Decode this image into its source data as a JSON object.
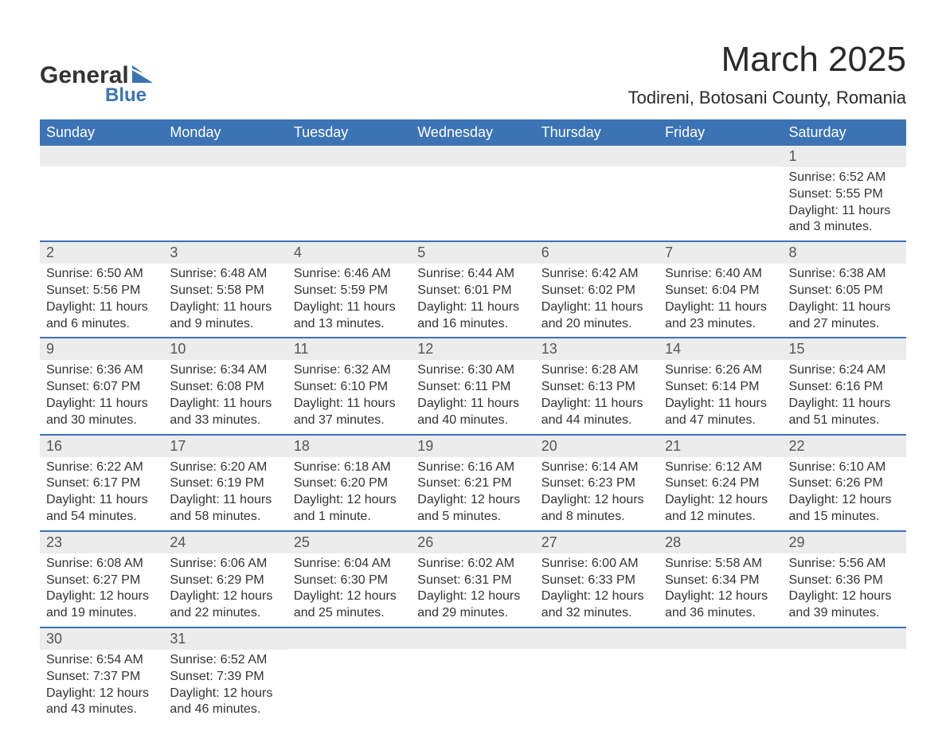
{
  "logo": {
    "word1": "General",
    "word2": "Blue",
    "icon_color": "#3b73b5"
  },
  "title": "March 2025",
  "subtitle": "Todireni, Botosani County, Romania",
  "header_bg": "#3b73b5",
  "header_fg": "#ffffff",
  "daynum_bg": "#ececec",
  "row_border": "#3b73b5",
  "weekdays": [
    "Sunday",
    "Monday",
    "Tuesday",
    "Wednesday",
    "Thursday",
    "Friday",
    "Saturday"
  ],
  "weeks": [
    [
      {
        "n": "",
        "lines": ""
      },
      {
        "n": "",
        "lines": ""
      },
      {
        "n": "",
        "lines": ""
      },
      {
        "n": "",
        "lines": ""
      },
      {
        "n": "",
        "lines": ""
      },
      {
        "n": "",
        "lines": ""
      },
      {
        "n": "1",
        "lines": "Sunrise: 6:52 AM\nSunset: 5:55 PM\nDaylight: 11 hours and 3 minutes."
      }
    ],
    [
      {
        "n": "2",
        "lines": "Sunrise: 6:50 AM\nSunset: 5:56 PM\nDaylight: 11 hours and 6 minutes."
      },
      {
        "n": "3",
        "lines": "Sunrise: 6:48 AM\nSunset: 5:58 PM\nDaylight: 11 hours and 9 minutes."
      },
      {
        "n": "4",
        "lines": "Sunrise: 6:46 AM\nSunset: 5:59 PM\nDaylight: 11 hours and 13 minutes."
      },
      {
        "n": "5",
        "lines": "Sunrise: 6:44 AM\nSunset: 6:01 PM\nDaylight: 11 hours and 16 minutes."
      },
      {
        "n": "6",
        "lines": "Sunrise: 6:42 AM\nSunset: 6:02 PM\nDaylight: 11 hours and 20 minutes."
      },
      {
        "n": "7",
        "lines": "Sunrise: 6:40 AM\nSunset: 6:04 PM\nDaylight: 11 hours and 23 minutes."
      },
      {
        "n": "8",
        "lines": "Sunrise: 6:38 AM\nSunset: 6:05 PM\nDaylight: 11 hours and 27 minutes."
      }
    ],
    [
      {
        "n": "9",
        "lines": "Sunrise: 6:36 AM\nSunset: 6:07 PM\nDaylight: 11 hours and 30 minutes."
      },
      {
        "n": "10",
        "lines": "Sunrise: 6:34 AM\nSunset: 6:08 PM\nDaylight: 11 hours and 33 minutes."
      },
      {
        "n": "11",
        "lines": "Sunrise: 6:32 AM\nSunset: 6:10 PM\nDaylight: 11 hours and 37 minutes."
      },
      {
        "n": "12",
        "lines": "Sunrise: 6:30 AM\nSunset: 6:11 PM\nDaylight: 11 hours and 40 minutes."
      },
      {
        "n": "13",
        "lines": "Sunrise: 6:28 AM\nSunset: 6:13 PM\nDaylight: 11 hours and 44 minutes."
      },
      {
        "n": "14",
        "lines": "Sunrise: 6:26 AM\nSunset: 6:14 PM\nDaylight: 11 hours and 47 minutes."
      },
      {
        "n": "15",
        "lines": "Sunrise: 6:24 AM\nSunset: 6:16 PM\nDaylight: 11 hours and 51 minutes."
      }
    ],
    [
      {
        "n": "16",
        "lines": "Sunrise: 6:22 AM\nSunset: 6:17 PM\nDaylight: 11 hours and 54 minutes."
      },
      {
        "n": "17",
        "lines": "Sunrise: 6:20 AM\nSunset: 6:19 PM\nDaylight: 11 hours and 58 minutes."
      },
      {
        "n": "18",
        "lines": "Sunrise: 6:18 AM\nSunset: 6:20 PM\nDaylight: 12 hours and 1 minute."
      },
      {
        "n": "19",
        "lines": "Sunrise: 6:16 AM\nSunset: 6:21 PM\nDaylight: 12 hours and 5 minutes."
      },
      {
        "n": "20",
        "lines": "Sunrise: 6:14 AM\nSunset: 6:23 PM\nDaylight: 12 hours and 8 minutes."
      },
      {
        "n": "21",
        "lines": "Sunrise: 6:12 AM\nSunset: 6:24 PM\nDaylight: 12 hours and 12 minutes."
      },
      {
        "n": "22",
        "lines": "Sunrise: 6:10 AM\nSunset: 6:26 PM\nDaylight: 12 hours and 15 minutes."
      }
    ],
    [
      {
        "n": "23",
        "lines": "Sunrise: 6:08 AM\nSunset: 6:27 PM\nDaylight: 12 hours and 19 minutes."
      },
      {
        "n": "24",
        "lines": "Sunrise: 6:06 AM\nSunset: 6:29 PM\nDaylight: 12 hours and 22 minutes."
      },
      {
        "n": "25",
        "lines": "Sunrise: 6:04 AM\nSunset: 6:30 PM\nDaylight: 12 hours and 25 minutes."
      },
      {
        "n": "26",
        "lines": "Sunrise: 6:02 AM\nSunset: 6:31 PM\nDaylight: 12 hours and 29 minutes."
      },
      {
        "n": "27",
        "lines": "Sunrise: 6:00 AM\nSunset: 6:33 PM\nDaylight: 12 hours and 32 minutes."
      },
      {
        "n": "28",
        "lines": "Sunrise: 5:58 AM\nSunset: 6:34 PM\nDaylight: 12 hours and 36 minutes."
      },
      {
        "n": "29",
        "lines": "Sunrise: 5:56 AM\nSunset: 6:36 PM\nDaylight: 12 hours and 39 minutes."
      }
    ],
    [
      {
        "n": "30",
        "lines": "Sunrise: 6:54 AM\nSunset: 7:37 PM\nDaylight: 12 hours and 43 minutes."
      },
      {
        "n": "31",
        "lines": "Sunrise: 6:52 AM\nSunset: 7:39 PM\nDaylight: 12 hours and 46 minutes."
      },
      {
        "n": "",
        "lines": ""
      },
      {
        "n": "",
        "lines": ""
      },
      {
        "n": "",
        "lines": ""
      },
      {
        "n": "",
        "lines": ""
      },
      {
        "n": "",
        "lines": ""
      }
    ]
  ]
}
